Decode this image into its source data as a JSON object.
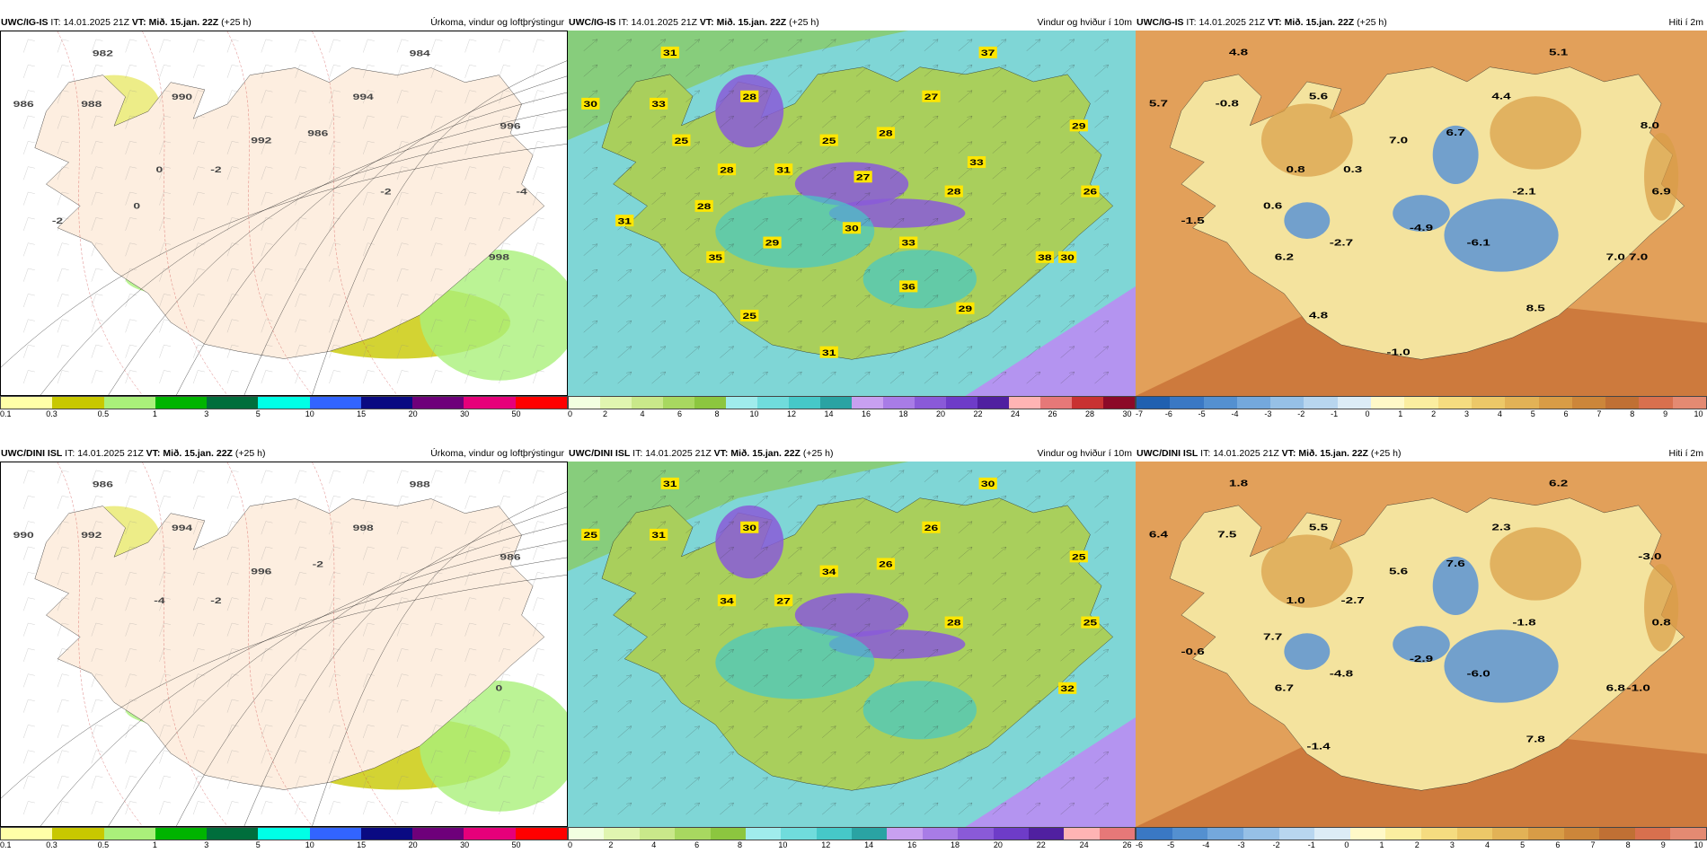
{
  "panels": [
    {
      "id": "p1",
      "model": "UWC/IG-IS",
      "it_label": "IT:",
      "it_value": "14.01.2025 21Z",
      "vt_label": "VT:",
      "vt_value": "Mið. 15.jan. 22Z",
      "lead": "(+25 h)",
      "title": "Úrkoma, vindur og loftþrýstingur",
      "colorbar_colors": [
        "#ffffa8",
        "#c8c800",
        "#aaf07a",
        "#00b400",
        "#006e3c",
        "#00ffe6",
        "#3264ff",
        "#0a0a82",
        "#6e007a",
        "#e6007a",
        "#ff0000"
      ],
      "colorbar_labels": [
        "0.1",
        "0.3",
        "0.5",
        "1",
        "3",
        "5",
        "10",
        "15",
        "20",
        "30",
        "50"
      ],
      "map_labels": [
        "982",
        "984",
        "986",
        "988",
        "990",
        "992",
        "994",
        "996",
        "998",
        "986",
        "0",
        "-2",
        "-4",
        "-2",
        "0",
        "-2"
      ],
      "map_theme": "precip"
    },
    {
      "id": "p2",
      "model": "UWC/IG-IS",
      "it_label": "IT:",
      "it_value": "14.01.2025 21Z",
      "vt_label": "VT:",
      "vt_value": "Mið. 15.jan. 22Z",
      "lead": "(+25 h)",
      "title": "Vindur og hviður í 10m",
      "colorbar_colors": [
        "#f2ffe0",
        "#e0f5b0",
        "#c9e88a",
        "#a8d860",
        "#8cc63f",
        "#a0ecec",
        "#70dcdc",
        "#46c8c8",
        "#2aa3a3",
        "#c8a0f0",
        "#a87ce6",
        "#8a5ad8",
        "#6e3cc8",
        "#5020a0",
        "#ffb4b4",
        "#e67878",
        "#c83232",
        "#8c0a28"
      ],
      "colorbar_labels": [
        "0",
        "2",
        "4",
        "6",
        "8",
        "10",
        "12",
        "14",
        "16",
        "18",
        "20",
        "22",
        "24",
        "26",
        "28",
        "30"
      ],
      "map_labels": [
        "31",
        "37",
        "30",
        "33",
        "28",
        "25",
        "27",
        "29",
        "30",
        "28",
        "28",
        "31",
        "26",
        "28",
        "28",
        "31",
        "30",
        "29",
        "33",
        "35",
        "38",
        "29",
        "25",
        "31",
        "27",
        "33",
        "25",
        "36"
      ],
      "map_theme": "wind"
    },
    {
      "id": "p3",
      "model": "UWC/IG-IS",
      "it_label": "IT:",
      "it_value": "14.01.2025 21Z",
      "vt_label": "VT:",
      "vt_value": "Mið. 15.jan. 22Z",
      "lead": "(+25 h)",
      "title": "Hiti í 2m",
      "colorbar_colors": [
        "#2060b0",
        "#3a78c4",
        "#5490d0",
        "#74a8dc",
        "#96c0e6",
        "#b8d6ef",
        "#dcecf6",
        "#fff9c8",
        "#fbeea0",
        "#f5dc80",
        "#ecc868",
        "#e2b256",
        "#d89c46",
        "#cc863a",
        "#c07034",
        "#d8704e",
        "#e48a72"
      ],
      "colorbar_labels": [
        "-7",
        "-6",
        "-5",
        "-4",
        "-3",
        "-2",
        "-1",
        "0",
        "1",
        "2",
        "3",
        "4",
        "5",
        "6",
        "7",
        "8",
        "9",
        "10"
      ],
      "map_labels": [
        "4.8",
        "5.1",
        "5.7",
        "-0.8",
        "5.6",
        "7.0",
        "4.4",
        "8.0",
        "7.0",
        "6.7",
        "0.8",
        "0.3",
        "6.9",
        "-2.1",
        "0.6",
        "-1.5",
        "-4.9",
        "-2.7",
        "-6.1",
        "6.2",
        "7.0",
        "8.5",
        "4.8",
        "-1.0"
      ],
      "map_theme": "temp"
    },
    {
      "id": "p4",
      "model": "UWC/DINI ISL",
      "it_label": "IT:",
      "it_value": "14.01.2025 21Z",
      "vt_label": "VT:",
      "vt_value": "Mið. 15.jan. 22Z",
      "lead": "(+25 h)",
      "title": "Úrkoma, vindur og loftþrýstingur",
      "colorbar_colors": [
        "#ffffa8",
        "#c8c800",
        "#aaf07a",
        "#00b400",
        "#006e3c",
        "#00ffe6",
        "#3264ff",
        "#0a0a82",
        "#6e007a",
        "#e6007a",
        "#ff0000"
      ],
      "colorbar_labels": [
        "0.1",
        "0.3",
        "0.5",
        "1",
        "3",
        "5",
        "10",
        "15",
        "20",
        "30",
        "50"
      ],
      "map_labels": [
        "986",
        "988",
        "990",
        "992",
        "994",
        "996",
        "998",
        "986",
        "0",
        "-2",
        "-4",
        "-2"
      ],
      "map_theme": "precip"
    },
    {
      "id": "p5",
      "model": "UWC/DINI ISL",
      "it_label": "IT:",
      "it_value": "14.01.2025 21Z",
      "vt_label": "VT:",
      "vt_value": "Mið. 15.jan. 22Z",
      "lead": "(+25 h)",
      "title": "Vindur og hviður í 10m",
      "colorbar_colors": [
        "#f2ffe0",
        "#e0f5b0",
        "#c9e88a",
        "#a8d860",
        "#8cc63f",
        "#a0ecec",
        "#70dcdc",
        "#46c8c8",
        "#2aa3a3",
        "#c8a0f0",
        "#a87ce6",
        "#8a5ad8",
        "#6e3cc8",
        "#5020a0",
        "#ffb4b4",
        "#e67878"
      ],
      "colorbar_labels": [
        "0",
        "2",
        "4",
        "6",
        "8",
        "10",
        "12",
        "14",
        "16",
        "18",
        "20",
        "22",
        "24",
        "26"
      ],
      "map_labels": [
        "31",
        "30",
        "25",
        "31",
        "30",
        "34",
        "26",
        "25",
        "32",
        "26",
        "34",
        "27",
        "25",
        "28"
      ],
      "map_theme": "wind"
    },
    {
      "id": "p6",
      "model": "UWC/DINI ISL",
      "it_label": "IT:",
      "it_value": "14.01.2025 21Z",
      "vt_label": "VT:",
      "vt_value": "Mið. 15.jan. 22Z",
      "lead": "(+25 h)",
      "title": "Hiti í 2m",
      "colorbar_colors": [
        "#3a78c4",
        "#5490d0",
        "#74a8dc",
        "#96c0e6",
        "#b8d6ef",
        "#dcecf6",
        "#fff9c8",
        "#fbeea0",
        "#f5dc80",
        "#ecc868",
        "#e2b256",
        "#d89c46",
        "#cc863a",
        "#c07034",
        "#d8704e",
        "#e48a72"
      ],
      "colorbar_labels": [
        "-6",
        "-5",
        "-4",
        "-3",
        "-2",
        "-1",
        "0",
        "1",
        "2",
        "3",
        "4",
        "5",
        "6",
        "7",
        "8",
        "9",
        "10"
      ],
      "map_labels": [
        "1.8",
        "6.2",
        "6.4",
        "7.5",
        "5.5",
        "5.6",
        "2.3",
        "-3.0",
        "-1.0",
        "7.6",
        "1.0",
        "-2.7",
        "0.8",
        "-1.8",
        "7.7",
        "-0.6",
        "-2.9",
        "-4.8",
        "-6.0",
        "6.7",
        "6.8",
        "7.8",
        "-1.4"
      ],
      "map_theme": "temp"
    }
  ]
}
